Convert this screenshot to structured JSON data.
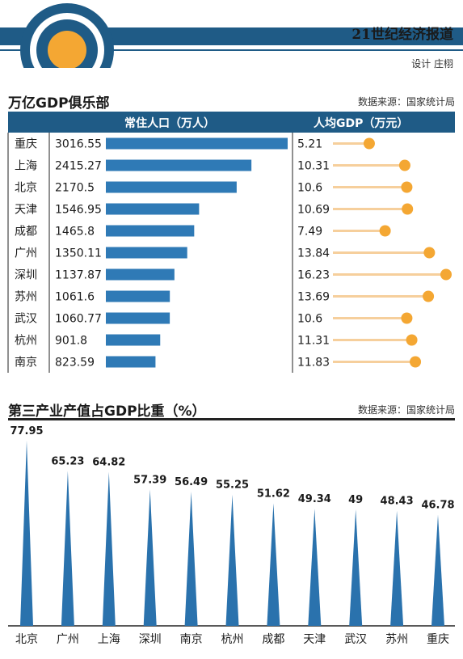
{
  "header": {
    "publication": "21世纪经济报道",
    "designer": "设计 庄栩"
  },
  "section1": {
    "title": "万亿GDP俱乐部",
    "source": "数据来源：国家统计局",
    "col_population": "常住人口（万人）",
    "col_gdp_per_capita": "人均GDP（万元）"
  },
  "section2": {
    "title": "第三产业产值占GDP比重（%）",
    "source": "数据来源：国家统计局"
  },
  "colors": {
    "navy": "#1f5b86",
    "bar": "#2f7ab6",
    "orange": "#f4a733",
    "lollipop_line": "#f6cf9c",
    "triangle": "#2a72ad"
  },
  "chart_data": [
    {
      "type": "bar",
      "orientation": "horizontal",
      "title": "常住人口（万人）",
      "categories": [
        "重庆",
        "上海",
        "北京",
        "天津",
        "成都",
        "广州",
        "深圳",
        "苏州",
        "武汉",
        "杭州",
        "南京"
      ],
      "values": [
        3016.55,
        2415.27,
        2170.5,
        1546.95,
        1465.8,
        1350.11,
        1137.87,
        1061.6,
        1060.77,
        901.8,
        823.59
      ],
      "labels": [
        "3016.55",
        "2415.27",
        "2170.5",
        "1546.95",
        "1465.8",
        "1350.11",
        "1137.87",
        "1061.6",
        "1060.77",
        "901.8",
        "823.59"
      ],
      "xlim": [
        0,
        3016.55
      ]
    },
    {
      "type": "scatter",
      "style": "lollipop",
      "title": "人均GDP（万元）",
      "categories": [
        "重庆",
        "上海",
        "北京",
        "天津",
        "成都",
        "广州",
        "深圳",
        "苏州",
        "武汉",
        "杭州",
        "南京"
      ],
      "values": [
        5.21,
        10.31,
        10.6,
        10.69,
        7.49,
        13.84,
        16.23,
        13.69,
        10.6,
        11.31,
        11.83
      ],
      "labels": [
        "5.21",
        "10.31",
        "10.6",
        "10.69",
        "7.49",
        "13.84",
        "16.23",
        "13.69",
        "10.6",
        "11.31",
        "11.83"
      ],
      "xlim": [
        0,
        16.23
      ]
    },
    {
      "type": "bar",
      "style": "triangle",
      "title": "第三产业产值占GDP比重（%）",
      "categories": [
        "北京",
        "广州",
        "上海",
        "深圳",
        "南京",
        "杭州",
        "成都",
        "天津",
        "武汉",
        "苏州",
        "重庆"
      ],
      "values": [
        77.95,
        65.23,
        64.82,
        57.39,
        56.49,
        55.25,
        51.62,
        49.34,
        49,
        48.43,
        46.78
      ],
      "labels": [
        "77.95",
        "65.23",
        "64.82",
        "57.39",
        "56.49",
        "55.25",
        "51.62",
        "49.34",
        "49",
        "48.43",
        "46.78"
      ],
      "ylim": [
        0,
        77.95
      ]
    }
  ]
}
